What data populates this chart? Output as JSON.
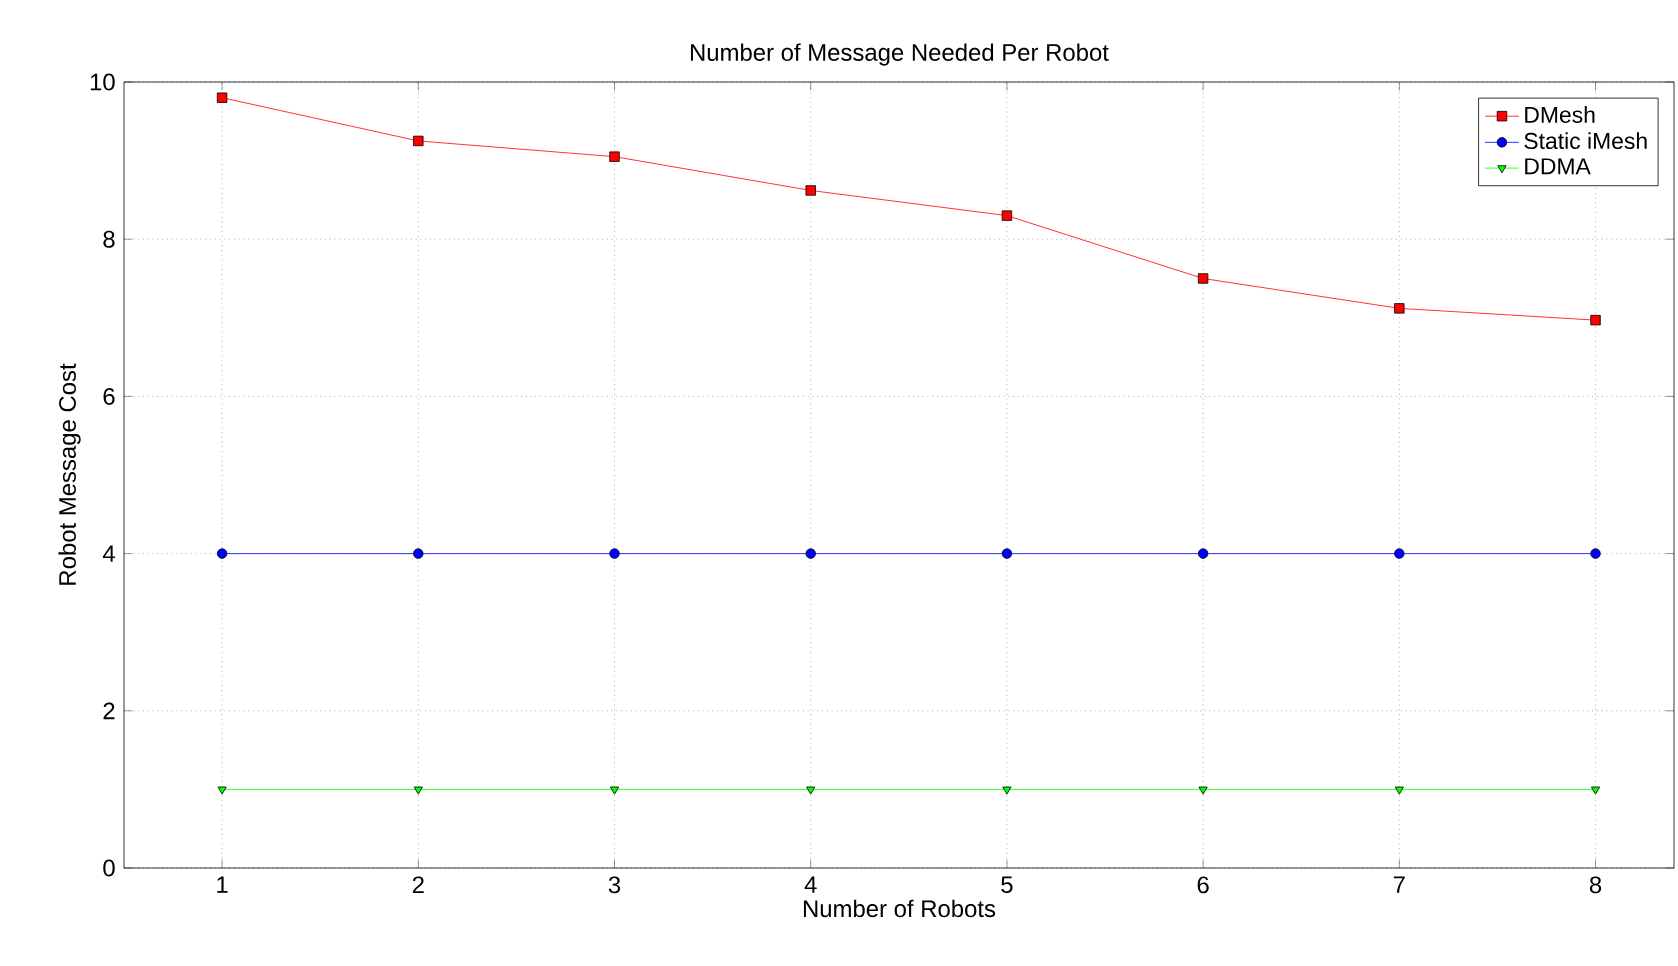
{
  "chart_data": {
    "type": "line",
    "title": "Number of Message Needed Per Robot",
    "xlabel": "Number of Robots",
    "ylabel": "Robot Message Cost",
    "x": [
      1,
      2,
      3,
      4,
      5,
      6,
      7,
      8
    ],
    "series": [
      {
        "name": "DMesh",
        "color": "#ff0000",
        "marker": "square",
        "values": [
          9.8,
          9.25,
          9.05,
          8.62,
          8.3,
          7.5,
          7.12,
          6.97
        ]
      },
      {
        "name": "Static iMesh",
        "color": "#0000ff",
        "marker": "circle",
        "values": [
          4,
          4,
          4,
          4,
          4,
          4,
          4,
          4
        ]
      },
      {
        "name": "DDMA",
        "color": "#00ff00",
        "marker": "triangle",
        "values": [
          1,
          1,
          1,
          1,
          1,
          1,
          1,
          1
        ]
      }
    ],
    "xlim": [
      0.5,
      8.4
    ],
    "ylim": [
      0,
      10
    ],
    "xticks": [
      1,
      2,
      3,
      4,
      5,
      6,
      7,
      8
    ],
    "yticks": [
      0,
      2,
      4,
      6,
      8,
      10
    ],
    "grid": true,
    "legend": "top right",
    "line_style": "solid"
  }
}
